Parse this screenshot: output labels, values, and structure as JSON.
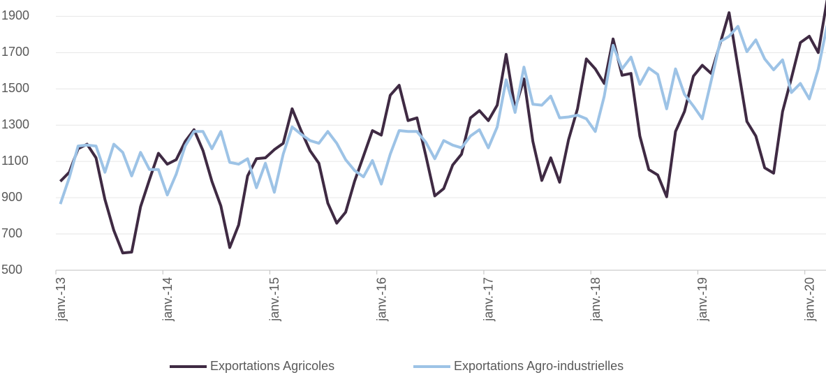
{
  "chart_data": {
    "type": "line",
    "categories": [
      "janv.-13",
      null,
      null,
      null,
      null,
      null,
      null,
      null,
      null,
      null,
      null,
      null,
      "janv.-14",
      null,
      null,
      null,
      null,
      null,
      null,
      null,
      null,
      null,
      null,
      null,
      "janv.-15",
      null,
      null,
      null,
      null,
      null,
      null,
      null,
      null,
      null,
      null,
      null,
      "janv.-16",
      null,
      null,
      null,
      null,
      null,
      null,
      null,
      null,
      null,
      null,
      null,
      "janv.-17",
      null,
      null,
      null,
      null,
      null,
      null,
      null,
      null,
      null,
      null,
      null,
      "janv.-18",
      null,
      null,
      null,
      null,
      null,
      null,
      null,
      null,
      null,
      null,
      null,
      "janv.-19",
      null,
      null,
      null,
      null,
      null,
      null,
      null,
      null,
      null,
      null,
      null,
      "janv.-20",
      null,
      null
    ],
    "series": [
      {
        "name": "Exportations Agricoles",
        "color": "#3f2a43",
        "values": [
          990,
          1040,
          1170,
          1195,
          1120,
          890,
          720,
          595,
          600,
          850,
          1000,
          1145,
          1085,
          1110,
          1210,
          1275,
          1160,
          990,
          855,
          625,
          750,
          1020,
          1115,
          1120,
          1165,
          1200,
          1390,
          1270,
          1160,
          1090,
          870,
          760,
          820,
          990,
          1130,
          1270,
          1245,
          1465,
          1520,
          1325,
          1340,
          1130,
          910,
          950,
          1080,
          1140,
          1340,
          1380,
          1325,
          1410,
          1690,
          1390,
          1555,
          1210,
          995,
          1120,
          985,
          1220,
          1390,
          1665,
          1610,
          1530,
          1775,
          1575,
          1585,
          1240,
          1055,
          1025,
          905,
          1265,
          1375,
          1570,
          1630,
          1585,
          1750,
          1920,
          1620,
          1320,
          1240,
          1065,
          1035,
          1375,
          1560,
          1755,
          1790,
          1700,
          1990
        ]
      },
      {
        "name": "Exportations Agro-industrielles",
        "color": "#9dc3e6",
        "values": [
          865,
          1010,
          1185,
          1190,
          1185,
          1040,
          1195,
          1150,
          1020,
          1150,
          1055,
          1055,
          915,
          1030,
          1185,
          1265,
          1265,
          1170,
          1265,
          1095,
          1085,
          1115,
          955,
          1090,
          930,
          1140,
          1290,
          1250,
          1215,
          1200,
          1265,
          1200,
          1110,
          1050,
          1015,
          1105,
          975,
          1140,
          1270,
          1265,
          1265,
          1205,
          1115,
          1215,
          1190,
          1175,
          1240,
          1275,
          1175,
          1290,
          1550,
          1370,
          1620,
          1415,
          1410,
          1460,
          1340,
          1345,
          1355,
          1335,
          1265,
          1460,
          1740,
          1610,
          1675,
          1525,
          1615,
          1580,
          1390,
          1610,
          1470,
          1405,
          1335,
          1545,
          1760,
          1790,
          1845,
          1705,
          1770,
          1665,
          1605,
          1660,
          1480,
          1530,
          1445,
          1610,
          1850
        ]
      }
    ],
    "ylim": [
      500,
      1990
    ],
    "yticks": [
      500,
      700,
      900,
      1100,
      1300,
      1500,
      1700,
      1900
    ],
    "grid": true
  }
}
